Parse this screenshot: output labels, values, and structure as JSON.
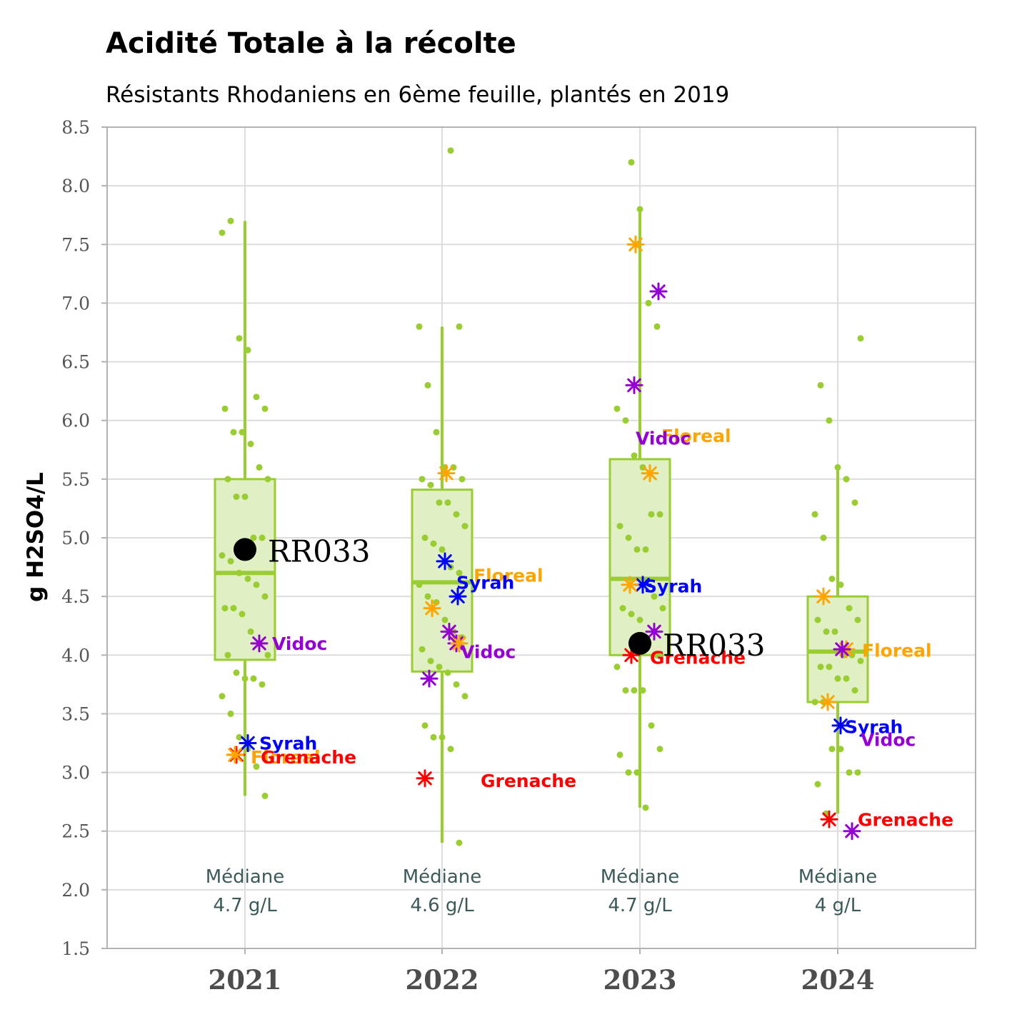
{
  "colors": {
    "accent": "#9acd32",
    "box_fill": "#e0f0c4",
    "grid": "#dddddd",
    "panel_border": "#b3b3b3",
    "median_text": "#3d5a5a",
    "rr": "#000000"
  },
  "chart_data": {
    "type": "box",
    "title": "Acidité Totale à la récolte",
    "subtitle": "Résistants Rhodaniens en 6ème feuille, plantés en 2019",
    "xlabel": "",
    "ylabel": "g H2SO4/L",
    "ylim": [
      1.5,
      8.5
    ],
    "yticks": [
      "1.5",
      "2.0",
      "2.5",
      "3.0",
      "3.5",
      "4.0",
      "4.5",
      "5.0",
      "5.5",
      "6.0",
      "6.5",
      "7.0",
      "7.5",
      "8.0",
      "8.5"
    ],
    "categories": [
      "2021",
      "2022",
      "2023",
      "2024"
    ],
    "grid": true,
    "median_label": "Médiane",
    "boxes": [
      {
        "year": "2021",
        "whisker_low": 2.8,
        "q1": 3.96,
        "median": 4.7,
        "q3": 5.5,
        "whisker_high": 7.7,
        "median_text": "4.7 g/L"
      },
      {
        "year": "2022",
        "whisker_low": 2.4,
        "q1": 3.86,
        "median": 4.62,
        "q3": 5.41,
        "whisker_high": 6.8,
        "median_text": "4.6 g/L"
      },
      {
        "year": "2023",
        "whisker_low": 2.7,
        "q1": 4.0,
        "median": 4.65,
        "q3": 5.67,
        "whisker_high": 7.8,
        "median_text": "4.7 g/L"
      },
      {
        "year": "2024",
        "whisker_low": 2.65,
        "q1": 3.6,
        "median": 4.03,
        "q3": 4.5,
        "whisker_high": 5.6,
        "median_text": "4 g/L"
      }
    ],
    "points": [
      {
        "year": "2021",
        "values": [
          7.6,
          7.7,
          6.7,
          6.6,
          6.2,
          6.1,
          6.1,
          5.9,
          5.9,
          5.8,
          5.6,
          5.5,
          5.5,
          5.35,
          5.35,
          5.0,
          5.0,
          4.85,
          4.8,
          4.7,
          4.65,
          4.6,
          4.5,
          4.4,
          4.4,
          4.35,
          4.2,
          4.1,
          4.0,
          4.0,
          3.85,
          3.8,
          3.8,
          3.75,
          3.65,
          3.5,
          3.3,
          3.2,
          3.05,
          2.8
        ]
      },
      {
        "year": "2022",
        "values": [
          8.3,
          6.8,
          6.8,
          6.3,
          5.9,
          5.6,
          5.6,
          5.5,
          5.5,
          5.45,
          5.3,
          5.3,
          5.2,
          5.1,
          5.0,
          4.95,
          4.9,
          4.75,
          4.7,
          4.6,
          4.5,
          4.45,
          4.3,
          4.2,
          4.15,
          4.05,
          3.95,
          3.9,
          3.85,
          3.75,
          3.65,
          3.4,
          3.3,
          3.3,
          3.2,
          2.4
        ]
      },
      {
        "year": "2023",
        "values": [
          8.2,
          7.8,
          7.0,
          6.8,
          6.1,
          6.0,
          5.7,
          5.6,
          5.2,
          5.2,
          5.1,
          5.0,
          4.9,
          4.9,
          4.5,
          4.4,
          4.4,
          4.35,
          4.3,
          4.1,
          4.0,
          3.9,
          3.7,
          3.7,
          3.7,
          3.4,
          3.2,
          3.15,
          3.0,
          3.0,
          2.7
        ]
      },
      {
        "year": "2024",
        "values": [
          6.7,
          6.3,
          6.0,
          5.6,
          5.5,
          5.3,
          5.2,
          5.0,
          4.65,
          4.6,
          4.4,
          4.3,
          4.3,
          4.2,
          4.2,
          4.0,
          4.0,
          3.95,
          3.9,
          3.9,
          3.8,
          3.8,
          3.7,
          3.6,
          3.6,
          3.2,
          3.2,
          3.0,
          3.0,
          2.9,
          2.65
        ]
      }
    ],
    "references": [
      {
        "name": "Grenache",
        "color": "#ff0000",
        "values": {
          "2021": 3.15,
          "2022": 2.95,
          "2023": 4.0,
          "2024": 2.6
        }
      },
      {
        "name": "Syrah",
        "color": "#0000ff",
        "values": {
          "2021": 3.25,
          "2022": 4.8,
          "2023": 4.6,
          "2024": 3.4
        }
      },
      {
        "name": "Floreal",
        "color": "#ffa500",
        "values": {
          "2021": 3.15,
          "2022": 4.4,
          "2023": 4.6,
          "2024": 3.6
        }
      },
      {
        "name": "Vidoc",
        "color": "#9400d3",
        "values": {
          "2021": 4.1,
          "2022": 4.1,
          "2023": 4.2,
          "2024": 2.5
        }
      }
    ],
    "extra_reference_points": [
      {
        "name": "Floreal",
        "year": "2022",
        "value": 5.55
      },
      {
        "name": "Floreal",
        "year": "2022",
        "value": 4.1
      },
      {
        "name": "Floreal",
        "year": "2023",
        "value": 7.5
      },
      {
        "name": "Floreal",
        "year": "2023",
        "value": 5.55
      },
      {
        "name": "Floreal",
        "year": "2024",
        "value": 4.5
      },
      {
        "name": "Floreal",
        "year": "2024",
        "value": 4.05
      },
      {
        "name": "Syrah",
        "year": "2022",
        "value": 4.5
      },
      {
        "name": "Vidoc",
        "year": "2022",
        "value": 4.2
      },
      {
        "name": "Vidoc",
        "year": "2022",
        "value": 3.8
      },
      {
        "name": "Vidoc",
        "year": "2023",
        "value": 7.1
      },
      {
        "name": "Vidoc",
        "year": "2023",
        "value": 6.3
      },
      {
        "name": "Vidoc",
        "year": "2024",
        "value": 4.05
      }
    ],
    "reference_labels": [
      {
        "name": "Syrah",
        "year": "2021",
        "value": 3.25
      },
      {
        "name": "Floreal",
        "year": "2021",
        "value": 3.13
      },
      {
        "name": "Grenache",
        "year": "2021",
        "value": 3.13
      },
      {
        "name": "Vidoc",
        "year": "2021",
        "value": 4.1
      },
      {
        "name": "Floreal",
        "year": "2022",
        "value": 4.68
      },
      {
        "name": "Syrah",
        "year": "2022",
        "value": 4.62
      },
      {
        "name": "Vidoc",
        "year": "2022",
        "value": 4.03
      },
      {
        "name": "Grenache",
        "year": "2022",
        "value": 2.93
      },
      {
        "name": "Floreal",
        "year": "2023",
        "value": 5.87
      },
      {
        "name": "Vidoc",
        "year": "2023",
        "value": 5.85
      },
      {
        "name": "Syrah",
        "year": "2023",
        "value": 4.59
      },
      {
        "name": "Grenache",
        "year": "2023",
        "value": 3.98
      },
      {
        "name": "Floreal",
        "year": "2024",
        "value": 4.04
      },
      {
        "name": "Syrah",
        "year": "2024",
        "value": 3.39
      },
      {
        "name": "Vidoc",
        "year": "2024",
        "value": 3.28
      },
      {
        "name": "Grenache",
        "year": "2024",
        "value": 2.6
      }
    ],
    "highlight": {
      "name": "RR033",
      "values": {
        "2021": 4.9,
        "2023": 4.1
      }
    }
  }
}
